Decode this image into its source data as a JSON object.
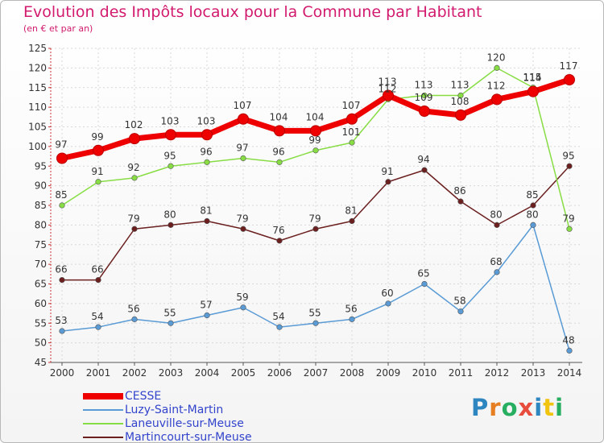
{
  "title": "Evolution des Impôts locaux pour la Commune par Habitant",
  "subtitle": "(en € et par an)",
  "logo": {
    "letters": [
      "P",
      "r",
      "o",
      "x",
      "i",
      "t",
      "i"
    ],
    "colors": [
      "#2e86c1",
      "#e67e22",
      "#27ae60",
      "#e74c3c",
      "#2e86c1",
      "#f1c40f",
      "#27ae60"
    ]
  },
  "chart_data": {
    "type": "line",
    "title": "Evolution des Impôts locaux pour la Commune par Habitant",
    "ylabel": "(en € et par an)",
    "x": [
      "2000",
      "2001",
      "2002",
      "2003",
      "2004",
      "2005",
      "2006",
      "2007",
      "2008",
      "2009",
      "2010",
      "2011",
      "2012",
      "2013",
      "2014"
    ],
    "ylim": [
      45,
      125
    ],
    "yticks": [
      45,
      50,
      55,
      60,
      65,
      70,
      75,
      80,
      85,
      90,
      95,
      100,
      105,
      110,
      115,
      120,
      125
    ],
    "grid": true,
    "legend_position": "bottom-left",
    "series": [
      {
        "name": "CESSE",
        "color": "#ee0000",
        "values": [
          97,
          99,
          102,
          103,
          103,
          107,
          104,
          104,
          107,
          113,
          109,
          108,
          112,
          114,
          117
        ],
        "labels": [
          "97",
          "99",
          "102",
          "103",
          "103",
          "107",
          "104",
          "104",
          "107",
          "113",
          "109",
          "108",
          "112",
          "114",
          "117"
        ]
      },
      {
        "name": "Luzy-Saint-Martin",
        "color": "#5a9bd5",
        "values": [
          53,
          54,
          56,
          55,
          57,
          59,
          54,
          55,
          56,
          60,
          65,
          58,
          68,
          80,
          48
        ],
        "labels": [
          "53",
          "54",
          "56",
          "55",
          "57",
          "59",
          "54",
          "55",
          "56",
          "60",
          "65",
          "58",
          "68",
          "80",
          "48"
        ]
      },
      {
        "name": "Laneuville-sur-Meuse",
        "color": "#88dd44",
        "values": [
          85,
          91,
          92,
          95,
          96,
          97,
          96,
          99,
          101,
          112,
          113,
          113,
          120,
          115,
          79
        ],
        "labels": [
          "85",
          "91",
          "92",
          "95",
          "96",
          "97",
          "96",
          "99",
          "101",
          "112",
          "113",
          "113",
          "120",
          "115",
          "79"
        ]
      },
      {
        "name": "Martincourt-sur-Meuse",
        "color": "#6b1f1f",
        "values": [
          66,
          66,
          79,
          80,
          81,
          79,
          76,
          79,
          81,
          91,
          94,
          86,
          80,
          85,
          95
        ],
        "labels": [
          "66",
          "66",
          "79",
          "80",
          "81",
          "79",
          "76",
          "79",
          "81",
          "91",
          "94",
          "86",
          "80",
          "85",
          "95"
        ]
      }
    ]
  }
}
